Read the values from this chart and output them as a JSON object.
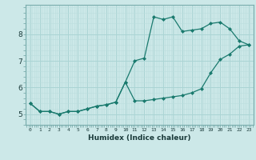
{
  "xlabel": "Humidex (Indice chaleur)",
  "x_values": [
    0,
    1,
    2,
    3,
    4,
    5,
    6,
    7,
    8,
    9,
    10,
    11,
    12,
    13,
    14,
    15,
    16,
    17,
    18,
    19,
    20,
    21,
    22,
    23
  ],
  "line1": [
    5.4,
    5.1,
    5.1,
    5.0,
    5.1,
    5.1,
    5.2,
    5.3,
    5.35,
    5.45,
    6.2,
    7.0,
    7.1,
    8.65,
    8.55,
    8.65,
    8.1,
    8.15,
    8.2,
    8.4,
    8.45,
    8.2,
    7.75,
    7.6
  ],
  "line2": [
    5.4,
    5.1,
    5.1,
    5.0,
    5.1,
    5.1,
    5.2,
    5.3,
    5.35,
    5.45,
    6.2,
    5.5,
    5.5,
    5.55,
    5.6,
    5.65,
    5.7,
    5.8,
    5.95,
    6.55,
    7.05,
    7.25,
    7.55,
    7.6
  ],
  "color": "#1a7a6e",
  "bg_color": "#cce8e8",
  "grid_major_color": "#aad4d4",
  "grid_minor_color": "#bbdede",
  "ylim": [
    4.6,
    9.1
  ],
  "yticks": [
    5,
    6,
    7,
    8
  ],
  "xlim": [
    -0.5,
    23.5
  ]
}
